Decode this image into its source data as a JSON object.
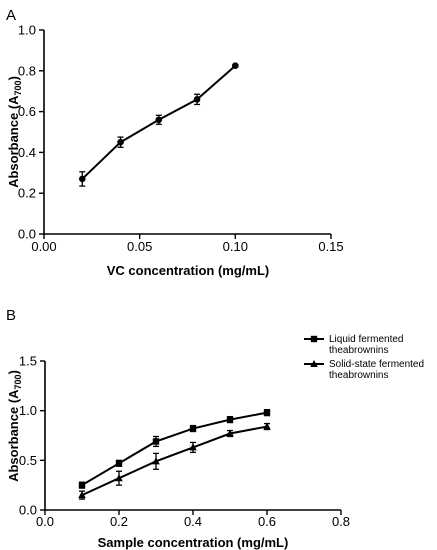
{
  "panels": [
    {
      "letter": "A",
      "chart_data": {
        "type": "line",
        "x": [
          0.02,
          0.04,
          0.06,
          0.08,
          0.1
        ],
        "series": [
          {
            "marker": "circle",
            "values": [
              0.27,
              0.45,
              0.56,
              0.66,
              0.825
            ],
            "errors": [
              0.035,
              0.025,
              0.022,
              0.025,
              0.006
            ]
          }
        ],
        "xlabel": "VC concentration (mg/mL)",
        "ylabel": "Absorbance (A700)",
        "ylabel_main": "Absorbance (A",
        "ylabel_sub": "700",
        "ylabel_end": ")",
        "xlim": [
          0,
          0.15
        ],
        "ylim": [
          0,
          1.0
        ],
        "xticks": [
          0,
          0.05,
          0.1,
          0.15
        ],
        "xtick_labels": [
          "0.00",
          "0.05",
          "0.10",
          "0.15"
        ],
        "yticks": [
          0,
          0.2,
          0.4,
          0.6,
          0.8,
          1.0
        ],
        "ytick_labels": [
          "0.0",
          "0.2",
          "0.4",
          "0.6",
          "0.8",
          "1.0"
        ],
        "grid": false
      }
    },
    {
      "letter": "B",
      "chart_data": {
        "type": "line",
        "x": [
          0.1,
          0.2,
          0.3,
          0.4,
          0.5,
          0.6
        ],
        "series": [
          {
            "name": "Liquid fermented theabrownins",
            "legend_lines": [
              "Liquid fermented",
              "theabrownins"
            ],
            "marker": "square",
            "values": [
              0.25,
              0.47,
              0.69,
              0.82,
              0.91,
              0.98
            ],
            "errors": [
              0.03,
              0.03,
              0.05,
              0.03,
              0.03,
              0.03
            ]
          },
          {
            "name": "Solid-state fermented theabrownins",
            "legend_lines": [
              "Solid-state fermented",
              "theabrownins"
            ],
            "marker": "triangle",
            "values": [
              0.15,
              0.32,
              0.49,
              0.63,
              0.77,
              0.84
            ],
            "errors": [
              0.04,
              0.07,
              0.08,
              0.05,
              0.03,
              0.03
            ]
          }
        ],
        "xlabel": "Sample concentration (mg/mL)",
        "ylabel": "Absorbance (A700)",
        "ylabel_main": "Absorbance (A",
        "ylabel_sub": "700",
        "ylabel_end": ")",
        "xlim": [
          0,
          0.8
        ],
        "ylim": [
          0,
          1.5
        ],
        "xticks": [
          0,
          0.2,
          0.4,
          0.6,
          0.8
        ],
        "xtick_labels": [
          "0.0",
          "0.2",
          "0.4",
          "0.6",
          "0.8"
        ],
        "yticks": [
          0,
          0.5,
          1.0,
          1.5
        ],
        "ytick_labels": [
          "0.0",
          "0.5",
          "1.0",
          "1.5"
        ],
        "legend_position": "top-right",
        "grid": false
      }
    }
  ]
}
